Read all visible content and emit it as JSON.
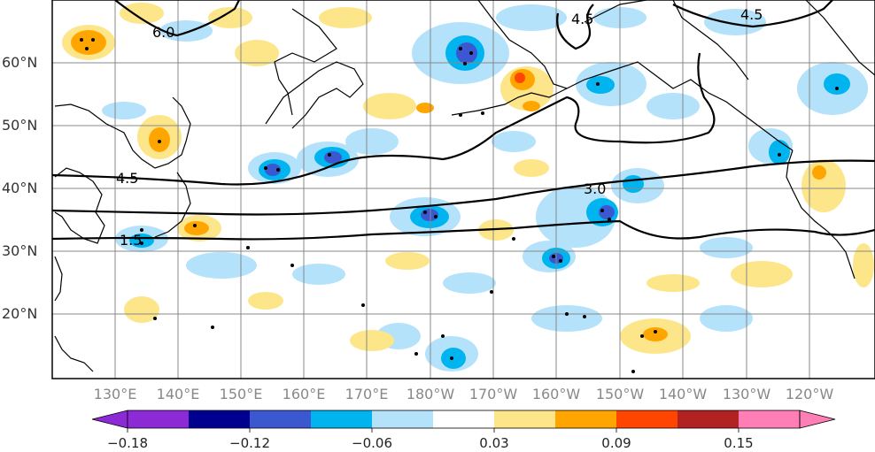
{
  "map": {
    "lat_labels": [
      "60°N",
      "50°N",
      "40°N",
      "30°N",
      "20°N"
    ],
    "lon_labels": [
      "130°E",
      "140°E",
      "150°E",
      "160°E",
      "170°E",
      "180°W",
      "170°W",
      "160°W",
      "150°W",
      "140°W",
      "130°W",
      "120°W"
    ],
    "contour_labels": [
      "6.0",
      "4.5",
      "4.5",
      "4.5",
      "3.0",
      "1.5"
    ]
  },
  "colorbar": {
    "colors": [
      "#8c2bd6",
      "#000090",
      "#3c58d0",
      "#00b4f0",
      "#b4e2fa",
      "#ffffff",
      "#fde68a",
      "#ffa500",
      "#ff4500",
      "#b22222",
      "#ff7eb6"
    ],
    "tick_labels": [
      "−0.18",
      "−0.12",
      "−0.06",
      "0.03",
      "0.09",
      "0.15"
    ]
  },
  "colors": {
    "grid": "#888888",
    "contour": "#000000",
    "light_blue": "#b4e2fa",
    "blue": "#00b4f0",
    "dark_blue": "#3c58d0",
    "navy": "#000090",
    "yellow": "#fde68a",
    "orange": "#ffa500",
    "red": "#ff4500"
  }
}
